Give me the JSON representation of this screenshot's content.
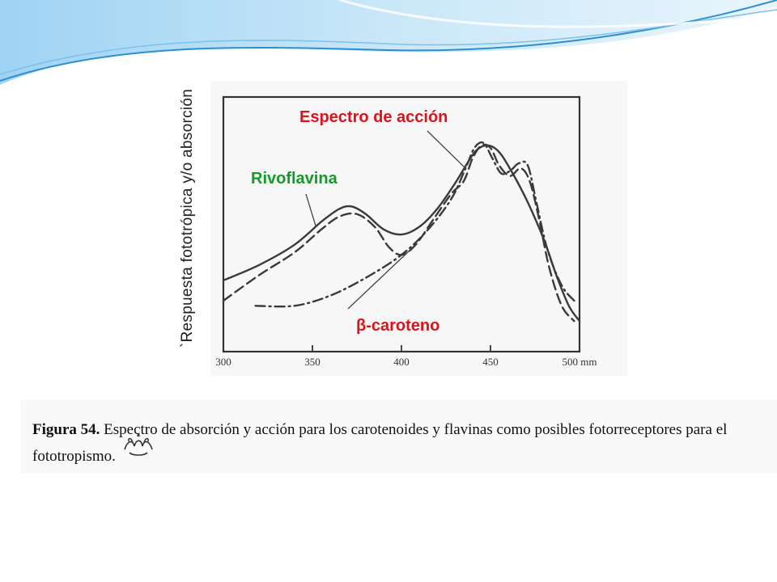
{
  "chart_data": {
    "type": "line",
    "ylabel": "`Respuesta fototrópica y/o absorción",
    "xlabel": "",
    "x_unit": "mm",
    "xlim": [
      300,
      500
    ],
    "ylim": [
      0,
      1
    ],
    "x_ticks": [
      300,
      350,
      400,
      450,
      500
    ],
    "grid": false,
    "series": [
      {
        "name": "Espectro de acción",
        "style": "solid",
        "color": "#3a3a3a",
        "points": [
          [
            300,
            0.28
          ],
          [
            320,
            0.34
          ],
          [
            340,
            0.42
          ],
          [
            355,
            0.51
          ],
          [
            365,
            0.56
          ],
          [
            372,
            0.57
          ],
          [
            380,
            0.54
          ],
          [
            390,
            0.48
          ],
          [
            400,
            0.46
          ],
          [
            410,
            0.49
          ],
          [
            420,
            0.56
          ],
          [
            430,
            0.66
          ],
          [
            437,
            0.74
          ],
          [
            442,
            0.79
          ],
          [
            448,
            0.81
          ],
          [
            454,
            0.79
          ],
          [
            460,
            0.73
          ],
          [
            470,
            0.6
          ],
          [
            480,
            0.44
          ],
          [
            487,
            0.3
          ],
          [
            494,
            0.18
          ],
          [
            500,
            0.12
          ]
        ]
      },
      {
        "name": "Rivoflavina",
        "style": "dashed",
        "color": "#3a3a3a",
        "points": [
          [
            300,
            0.2
          ],
          [
            320,
            0.3
          ],
          [
            340,
            0.39
          ],
          [
            355,
            0.48
          ],
          [
            365,
            0.53
          ],
          [
            375,
            0.54
          ],
          [
            385,
            0.49
          ],
          [
            393,
            0.41
          ],
          [
            400,
            0.38
          ],
          [
            408,
            0.42
          ],
          [
            418,
            0.52
          ],
          [
            428,
            0.62
          ],
          [
            435,
            0.67
          ],
          [
            440,
            0.76
          ],
          [
            445,
            0.81
          ],
          [
            450,
            0.8
          ],
          [
            455,
            0.73
          ],
          [
            461,
            0.69
          ],
          [
            467,
            0.72
          ],
          [
            472,
            0.67
          ],
          [
            477,
            0.53
          ],
          [
            483,
            0.33
          ],
          [
            490,
            0.18
          ],
          [
            497,
            0.12
          ]
        ]
      },
      {
        "name": "β-caroteno",
        "style": "dashdot",
        "color": "#3a3a3a",
        "points": [
          [
            318,
            0.18
          ],
          [
            340,
            0.18
          ],
          [
            360,
            0.22
          ],
          [
            380,
            0.29
          ],
          [
            400,
            0.38
          ],
          [
            415,
            0.48
          ],
          [
            428,
            0.6
          ],
          [
            436,
            0.72
          ],
          [
            441,
            0.8
          ],
          [
            446,
            0.82
          ],
          [
            451,
            0.76
          ],
          [
            456,
            0.7
          ],
          [
            461,
            0.71
          ],
          [
            466,
            0.74
          ],
          [
            471,
            0.73
          ],
          [
            476,
            0.58
          ],
          [
            482,
            0.4
          ],
          [
            490,
            0.26
          ],
          [
            497,
            0.2
          ]
        ]
      }
    ],
    "annotations": [
      {
        "text": "Espectro de acción",
        "color": "#e0111b"
      },
      {
        "text": "Rivoflavina",
        "color": "#159a2a"
      },
      {
        "text": "β-caroteno",
        "color": "#e0111b"
      }
    ]
  },
  "caption": {
    "figure_number": "Figura 54.",
    "line1": "Espectro de absorción y acción para los carotenoides y flavinas como posibles fotorreceptores para el",
    "line2": "fototropismo."
  },
  "colors": {
    "background": "#ffffff",
    "swoosh_light": "#cfe8f7",
    "swoosh_mid": "#7ec1ea",
    "swoosh_dark": "#2b8fd1"
  }
}
